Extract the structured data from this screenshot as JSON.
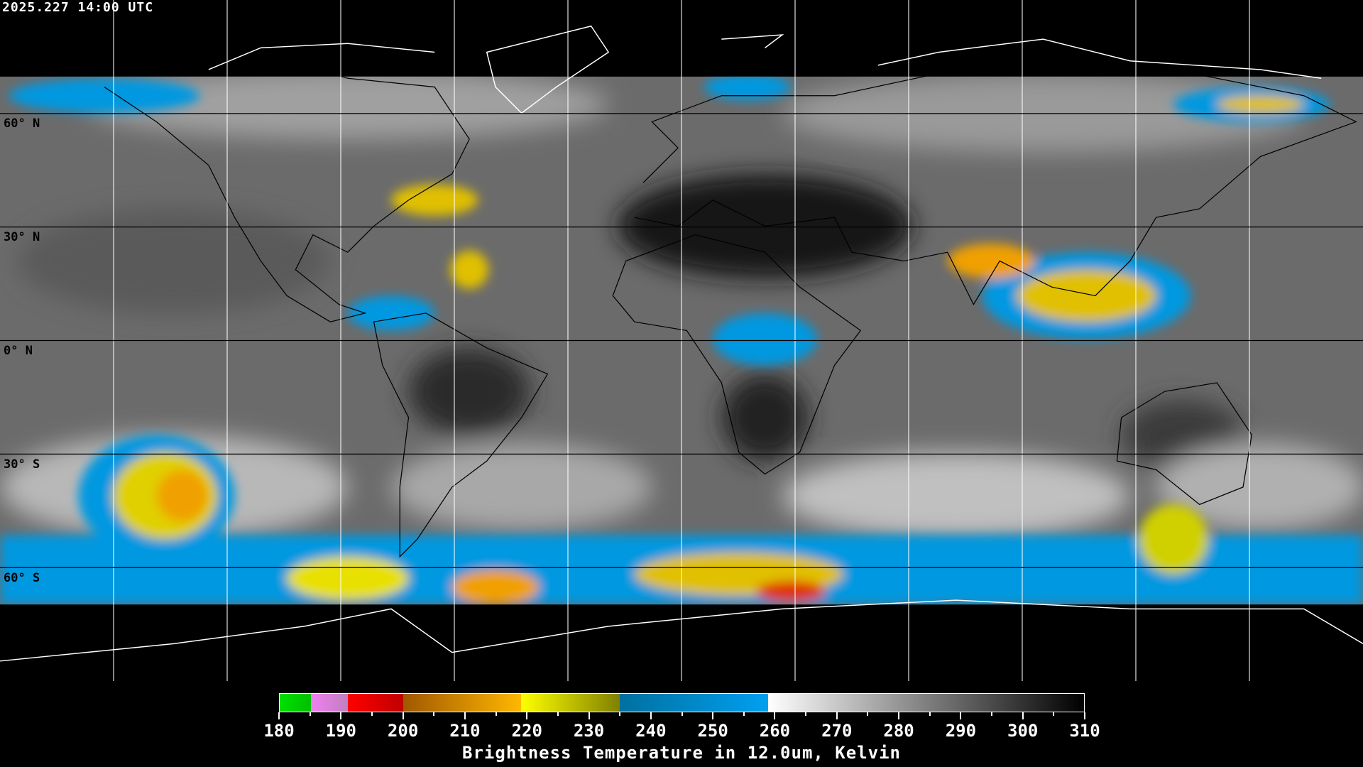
{
  "header": {
    "timestamp": "2025.227 14:00 UTC"
  },
  "map": {
    "latitude_labels": [
      "60° N",
      "30° N",
      "0° N",
      "30° S",
      "60° S"
    ],
    "graticule_spacing_deg": 30
  },
  "colorbar": {
    "title": "Brightness Temperature in 12.0um, Kelvin",
    "min": 180,
    "max": 310,
    "tick_labels": [
      "180",
      "190",
      "200",
      "210",
      "220",
      "230",
      "240",
      "250",
      "260",
      "270",
      "280",
      "290",
      "300",
      "310"
    ],
    "segments": [
      {
        "from": 180,
        "to": 185,
        "colors": [
          "#00e000",
          "#00c000"
        ]
      },
      {
        "from": 185,
        "to": 191,
        "colors": [
          "#f080f0",
          "#c080c0"
        ]
      },
      {
        "from": 191,
        "to": 200,
        "colors": [
          "#ff0000",
          "#c00000"
        ]
      },
      {
        "from": 200,
        "to": 219,
        "colors": [
          "#a05800",
          "#ffb800"
        ]
      },
      {
        "from": 219,
        "to": 235,
        "colors": [
          "#ffff00",
          "#808000"
        ]
      },
      {
        "from": 235,
        "to": 259,
        "colors": [
          "#0070a0",
          "#00a0f0"
        ]
      },
      {
        "from": 259,
        "to": 310,
        "colors": [
          "#ffffff",
          "#000000"
        ]
      }
    ]
  }
}
